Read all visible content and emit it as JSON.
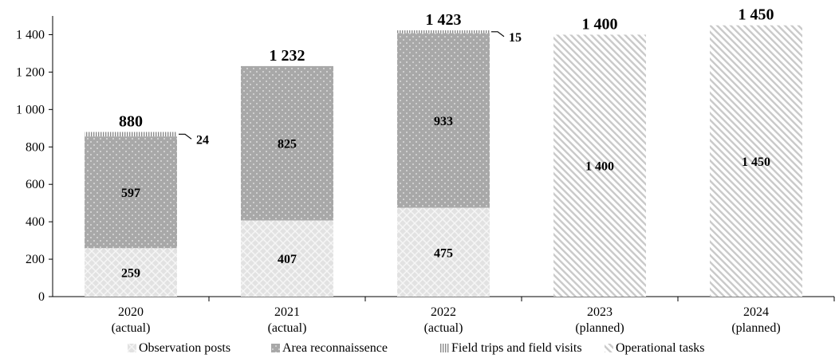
{
  "colors": {
    "observation_posts": "#dcdcdc",
    "area_reconnaissance": "#a9a9a9",
    "field_trips": "#c8c8c8",
    "operational_tasks": "#ffffff",
    "axis": "#000000"
  },
  "chart_data": {
    "type": "bar",
    "stacked": true,
    "title": "",
    "xlabel": "",
    "ylabel": "",
    "ylim": [
      0,
      1500
    ],
    "yticks": [
      0,
      200,
      400,
      600,
      800,
      1000,
      1200,
      1400
    ],
    "ytick_labels": [
      "0",
      "200",
      "400",
      "600",
      "800",
      "1 000",
      "1 200",
      "1 400"
    ],
    "grid": false,
    "legend_position": "bottom",
    "categories": [
      {
        "year": "2020",
        "status": "(actual)"
      },
      {
        "year": "2021",
        "status": "(actual)"
      },
      {
        "year": "2022",
        "status": "(actual)"
      },
      {
        "year": "2023",
        "status": "(planned)"
      },
      {
        "year": "2024",
        "status": "(planned)"
      }
    ],
    "series": [
      {
        "key": "observation_posts",
        "name": "Observation posts",
        "pattern": "diamond",
        "values": [
          259,
          407,
          475,
          0,
          0
        ],
        "labels": [
          "259",
          "407",
          "475",
          "",
          ""
        ]
      },
      {
        "key": "area_reconnaissance",
        "name": "Area reconnaissence",
        "pattern": "dots",
        "values": [
          597,
          825,
          933,
          0,
          0
        ],
        "labels": [
          "597",
          "825",
          "933",
          "",
          ""
        ]
      },
      {
        "key": "field_trips",
        "name": "Field trips and field visits",
        "pattern": "vertical",
        "values": [
          24,
          0,
          15,
          0,
          0
        ],
        "labels": [
          "24",
          "",
          "15",
          "",
          ""
        ],
        "callout": true
      },
      {
        "key": "operational_tasks",
        "name": "Operational tasks",
        "pattern": "diagonal",
        "values": [
          0,
          0,
          0,
          1400,
          1450
        ],
        "labels": [
          "",
          "",
          "",
          "1 400",
          "1 450"
        ]
      }
    ],
    "totals": [
      880,
      1232,
      1423,
      1400,
      1450
    ],
    "total_labels": [
      "880",
      "1 232",
      "1 423",
      "1 400",
      "1 450"
    ]
  }
}
